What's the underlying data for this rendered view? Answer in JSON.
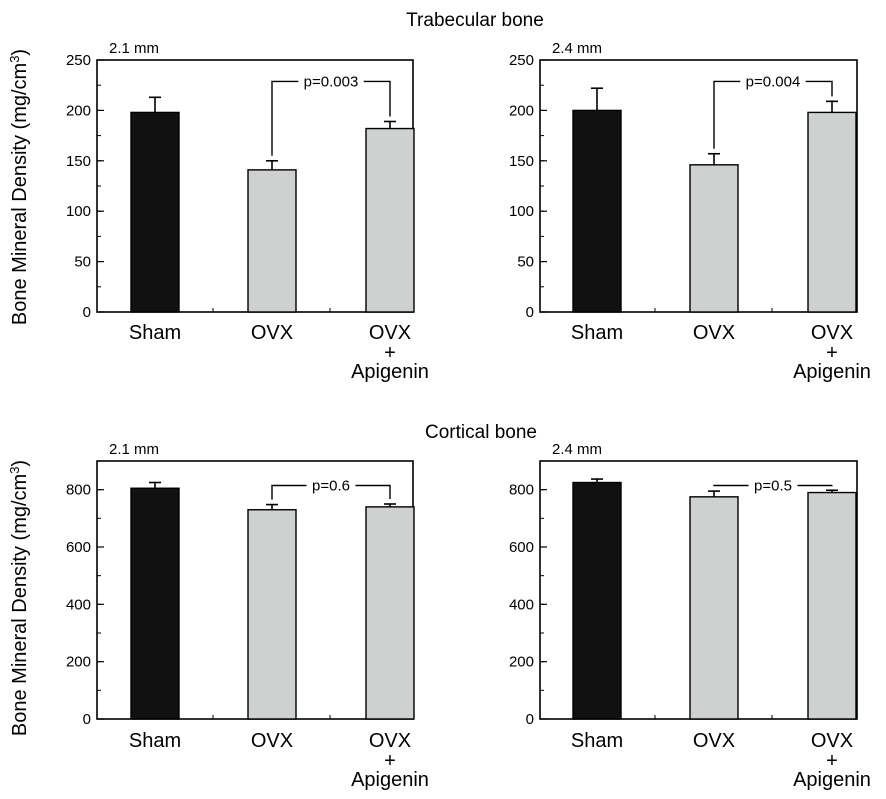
{
  "figure": {
    "ylabel_text": "Bone Mineral Density (mg/cm",
    "ylabel_sup": "3",
    "ylabel_close": ")",
    "category_labels": [
      "Sham",
      "OVX",
      "OVX"
    ],
    "plus_sign": "+",
    "apigenin_label": "Apigenin"
  },
  "sections": [
    {
      "title": "Trabecular bone"
    },
    {
      "title": "Cortical bone"
    }
  ],
  "colors": {
    "sham": "#111111",
    "ovx": "#cfd0d0",
    "axis": "#000000"
  },
  "chart_data": [
    {
      "type": "bar",
      "section": "Trabecular bone",
      "panel_label": "2.1 mm",
      "categories": [
        "Sham",
        "OVX",
        "OVX + Apigenin"
      ],
      "values": [
        198,
        141,
        182
      ],
      "errors": [
        15,
        9,
        7
      ],
      "ylim": [
        0,
        250
      ],
      "yticks": [
        0,
        50,
        100,
        150,
        200,
        250
      ],
      "yminor": 25,
      "comparison": {
        "between": [
          1,
          2
        ],
        "label": "p=0.003"
      }
    },
    {
      "type": "bar",
      "section": "Trabecular bone",
      "panel_label": "2.4 mm",
      "categories": [
        "Sham",
        "OVX",
        "OVX + Apigenin"
      ],
      "values": [
        200,
        146,
        198
      ],
      "errors": [
        22,
        11,
        11
      ],
      "ylim": [
        0,
        250
      ],
      "yticks": [
        0,
        50,
        100,
        150,
        200,
        250
      ],
      "yminor": 25,
      "comparison": {
        "between": [
          1,
          2
        ],
        "label": "p=0.004"
      }
    },
    {
      "type": "bar",
      "section": "Cortical bone",
      "panel_label": "2.1 mm",
      "categories": [
        "Sham",
        "OVX",
        "OVX + Apigenin"
      ],
      "values": [
        805,
        730,
        740
      ],
      "errors": [
        20,
        18,
        10
      ],
      "ylim": [
        0,
        900
      ],
      "yticks": [
        0,
        200,
        400,
        600,
        800
      ],
      "yminor": 100,
      "comparison": {
        "between": [
          1,
          2
        ],
        "label": "p=0.6"
      }
    },
    {
      "type": "bar",
      "section": "Cortical bone",
      "panel_label": "2.4 mm",
      "categories": [
        "Sham",
        "OVX",
        "OVX + Apigenin"
      ],
      "values": [
        825,
        775,
        790
      ],
      "errors": [
        12,
        20,
        8
      ],
      "ylim": [
        0,
        900
      ],
      "yticks": [
        0,
        200,
        400,
        600,
        800
      ],
      "yminor": 100,
      "comparison": {
        "between": [
          1,
          2
        ],
        "label": "p=0.5"
      }
    }
  ]
}
